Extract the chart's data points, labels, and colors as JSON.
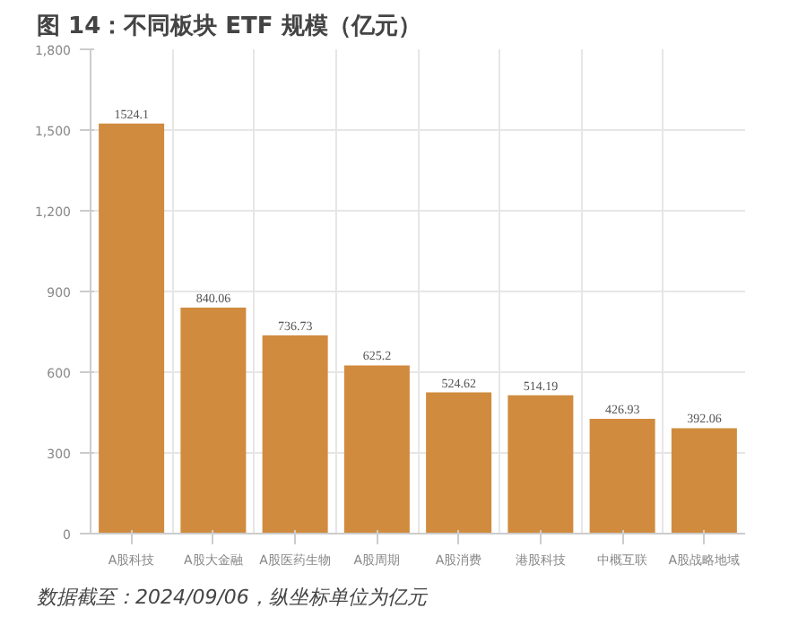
{
  "chart_data": {
    "type": "bar",
    "title": "图 14：不同板块 ETF 规模（亿元）",
    "categories": [
      "A股科技",
      "A股大金融",
      "A股医药生物",
      "A股周期",
      "A股消费",
      "港股科技",
      "中概互联",
      "A股战略地域"
    ],
    "values": [
      1524.1,
      840.06,
      736.73,
      625.2,
      524.62,
      514.19,
      426.93,
      392.06
    ],
    "color": "#d08b3e",
    "ylim": [
      0,
      1800
    ],
    "yticks": [
      0,
      {
        "value": 300,
        "label": "300"
      },
      {
        "value": 600,
        "label": "600"
      },
      {
        "value": 900,
        "label": "900"
      },
      {
        "value": 1200,
        "label": "1,200"
      },
      {
        "value": 1500,
        "label": "1,500"
      },
      {
        "value": 1800,
        "label": "1,800"
      }
    ],
    "grid": true,
    "data_labels": true,
    "annotations": [
      "数据截至：2024/09/06，纵坐标单位为亿元"
    ]
  }
}
